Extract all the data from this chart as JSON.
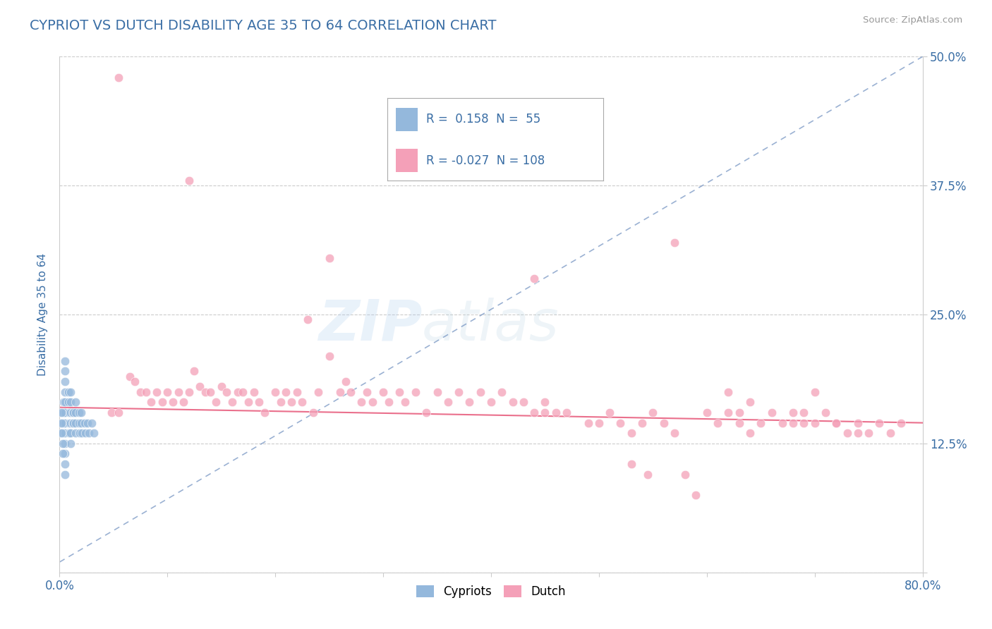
{
  "title": "CYPRIOT VS DUTCH DISABILITY AGE 35 TO 64 CORRELATION CHART",
  "source": "Source: ZipAtlas.com",
  "ylabel": "Disability Age 35 to 64",
  "xlim": [
    0.0,
    0.8
  ],
  "ylim": [
    0.0,
    0.5
  ],
  "xticks": [
    0.0,
    0.1,
    0.2,
    0.3,
    0.4,
    0.5,
    0.6,
    0.7,
    0.8
  ],
  "yticks": [
    0.0,
    0.125,
    0.25,
    0.375,
    0.5
  ],
  "ytick_labels": [
    "",
    "12.5%",
    "25.0%",
    "37.5%",
    "50.0%"
  ],
  "xtick_labels": [
    "0.0%",
    "",
    "",
    "",
    "",
    "",
    "",
    "",
    "80.0%"
  ],
  "title_color": "#3A6EA5",
  "axis_label_color": "#3A6EA5",
  "tick_color": "#3A6EA5",
  "background_color": "#FFFFFF",
  "grid_color": "#CCCCCC",
  "cypriot_color": "#94B8DC",
  "dutch_color": "#F4A0B8",
  "cypriot_R": 0.158,
  "cypriot_N": 55,
  "dutch_R": -0.027,
  "dutch_N": 108,
  "cypriot_line_color": "#7090C0",
  "dutch_line_color": "#E86080",
  "cypriot_x": [
    0.003,
    0.003,
    0.003,
    0.004,
    0.004,
    0.004,
    0.005,
    0.005,
    0.005,
    0.005,
    0.005,
    0.005,
    0.005,
    0.005,
    0.005,
    0.005,
    0.005,
    0.005,
    0.008,
    0.008,
    0.009,
    0.009,
    0.009,
    0.01,
    0.01,
    0.01,
    0.01,
    0.01,
    0.01,
    0.012,
    0.012,
    0.013,
    0.013,
    0.015,
    0.015,
    0.015,
    0.015,
    0.018,
    0.018,
    0.019,
    0.02,
    0.02,
    0.021,
    0.023,
    0.024,
    0.026,
    0.027,
    0.03,
    0.032,
    0.002,
    0.002,
    0.002,
    0.003,
    0.003
  ],
  "cypriot_y": [
    0.155,
    0.145,
    0.135,
    0.165,
    0.155,
    0.145,
    0.205,
    0.195,
    0.185,
    0.175,
    0.165,
    0.155,
    0.145,
    0.135,
    0.125,
    0.115,
    0.105,
    0.095,
    0.175,
    0.165,
    0.155,
    0.145,
    0.135,
    0.175,
    0.165,
    0.155,
    0.145,
    0.135,
    0.125,
    0.155,
    0.145,
    0.155,
    0.145,
    0.165,
    0.155,
    0.145,
    0.135,
    0.155,
    0.145,
    0.135,
    0.155,
    0.145,
    0.135,
    0.145,
    0.135,
    0.145,
    0.135,
    0.145,
    0.135,
    0.155,
    0.145,
    0.135,
    0.125,
    0.115
  ],
  "dutch_x": [
    0.048,
    0.055,
    0.065,
    0.07,
    0.075,
    0.08,
    0.085,
    0.09,
    0.095,
    0.1,
    0.105,
    0.11,
    0.115,
    0.12,
    0.125,
    0.13,
    0.135,
    0.14,
    0.145,
    0.15,
    0.155,
    0.16,
    0.165,
    0.17,
    0.175,
    0.18,
    0.185,
    0.19,
    0.2,
    0.205,
    0.21,
    0.215,
    0.22,
    0.225,
    0.23,
    0.235,
    0.24,
    0.25,
    0.26,
    0.265,
    0.27,
    0.28,
    0.285,
    0.29,
    0.3,
    0.305,
    0.315,
    0.32,
    0.33,
    0.34,
    0.35,
    0.36,
    0.37,
    0.38,
    0.39,
    0.4,
    0.41,
    0.42,
    0.43,
    0.44,
    0.45,
    0.46,
    0.47,
    0.49,
    0.5,
    0.51,
    0.52,
    0.53,
    0.54,
    0.55,
    0.56,
    0.57,
    0.58,
    0.59,
    0.6,
    0.61,
    0.62,
    0.63,
    0.64,
    0.65,
    0.66,
    0.67,
    0.68,
    0.69,
    0.7,
    0.71,
    0.72,
    0.73,
    0.74,
    0.75,
    0.76,
    0.77,
    0.78,
    0.12,
    0.25,
    0.44,
    0.57,
    0.62,
    0.63,
    0.64,
    0.68,
    0.69,
    0.7,
    0.72,
    0.74,
    0.055,
    0.45,
    0.53,
    0.545
  ],
  "dutch_y": [
    0.155,
    0.48,
    0.19,
    0.185,
    0.175,
    0.175,
    0.165,
    0.175,
    0.165,
    0.175,
    0.165,
    0.175,
    0.165,
    0.175,
    0.195,
    0.18,
    0.175,
    0.175,
    0.165,
    0.18,
    0.175,
    0.165,
    0.175,
    0.175,
    0.165,
    0.175,
    0.165,
    0.155,
    0.175,
    0.165,
    0.175,
    0.165,
    0.175,
    0.165,
    0.245,
    0.155,
    0.175,
    0.21,
    0.175,
    0.185,
    0.175,
    0.165,
    0.175,
    0.165,
    0.175,
    0.165,
    0.175,
    0.165,
    0.175,
    0.155,
    0.175,
    0.165,
    0.175,
    0.165,
    0.175,
    0.165,
    0.175,
    0.165,
    0.165,
    0.155,
    0.165,
    0.155,
    0.155,
    0.145,
    0.145,
    0.155,
    0.145,
    0.135,
    0.145,
    0.155,
    0.145,
    0.135,
    0.095,
    0.075,
    0.155,
    0.145,
    0.155,
    0.145,
    0.135,
    0.145,
    0.155,
    0.145,
    0.155,
    0.145,
    0.175,
    0.155,
    0.145,
    0.135,
    0.145,
    0.135,
    0.145,
    0.135,
    0.145,
    0.38,
    0.305,
    0.285,
    0.32,
    0.175,
    0.155,
    0.165,
    0.145,
    0.155,
    0.145,
    0.145,
    0.135,
    0.155,
    0.155,
    0.105,
    0.095
  ],
  "cyp_line_x0": 0.0,
  "cyp_line_y0": 0.01,
  "cyp_line_x1": 0.8,
  "cyp_line_y1": 0.5,
  "dut_line_x0": 0.0,
  "dut_line_y0": 0.16,
  "dut_line_x1": 0.8,
  "dut_line_y1": 0.145
}
